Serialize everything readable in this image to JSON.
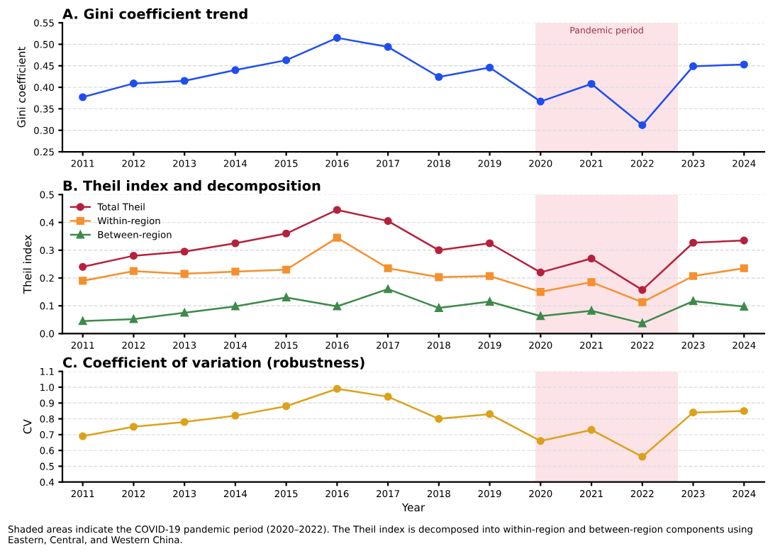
{
  "chart_data": [
    {
      "type": "line",
      "title": "A. Gini coefficient trend",
      "ylabel": "Gini coefficient",
      "x": [
        2011,
        2012,
        2013,
        2014,
        2015,
        2016,
        2017,
        2018,
        2019,
        2020,
        2021,
        2022,
        2023,
        2024
      ],
      "series": [
        {
          "color": "#1f4ef0",
          "marker": "circle",
          "values": [
            0.377,
            0.409,
            0.415,
            0.44,
            0.463,
            0.515,
            0.494,
            0.424,
            0.446,
            0.367,
            0.408,
            0.312,
            0.449,
            0.453
          ]
        }
      ],
      "xlim": [
        2010.6,
        2024.4
      ],
      "xticks": [
        2011,
        2012,
        2013,
        2014,
        2015,
        2016,
        2017,
        2018,
        2019,
        2020,
        2021,
        2022,
        2023,
        2024
      ],
      "ylim": [
        0.25,
        0.55
      ],
      "yticks": [
        {
          "value": 0.25,
          "label": "0.25"
        },
        {
          "value": 0.3,
          "label": "0.30"
        },
        {
          "value": 0.35,
          "label": "0.35"
        },
        {
          "value": 0.4,
          "label": "0.40"
        },
        {
          "value": 0.45,
          "label": "0.45"
        },
        {
          "value": 0.5,
          "label": "0.50"
        },
        {
          "value": 0.55,
          "label": "0.55"
        }
      ],
      "grid": "y",
      "legend": false,
      "bands": [
        {
          "axis": "x",
          "from": 2019.9,
          "to": 2022.7,
          "label": "Pandemic period",
          "color": "#fbe3e8"
        }
      ]
    },
    {
      "type": "line",
      "title": "B. Theil index and decomposition",
      "ylabel": "Theil index",
      "x": [
        2011,
        2012,
        2013,
        2014,
        2015,
        2016,
        2017,
        2018,
        2019,
        2020,
        2021,
        2022,
        2023,
        2024
      ],
      "series": [
        {
          "name": "Total Theil",
          "color": "#b5213c",
          "marker": "circle",
          "values": [
            0.24,
            0.28,
            0.295,
            0.325,
            0.36,
            0.445,
            0.405,
            0.3,
            0.325,
            0.22,
            0.27,
            0.157,
            0.327,
            0.335
          ]
        },
        {
          "name": "Within-region",
          "color": "#f5902e",
          "marker": "square",
          "values": [
            0.19,
            0.225,
            0.215,
            0.223,
            0.23,
            0.345,
            0.235,
            0.203,
            0.207,
            0.15,
            0.185,
            0.113,
            0.207,
            0.235
          ]
        },
        {
          "name": "Between-region",
          "color": "#3d8a4a",
          "marker": "triangle",
          "values": [
            0.045,
            0.052,
            0.075,
            0.098,
            0.13,
            0.098,
            0.16,
            0.092,
            0.115,
            0.063,
            0.082,
            0.037,
            0.117,
            0.097
          ]
        }
      ],
      "xlim": [
        2010.6,
        2024.4
      ],
      "xticks": [
        2011,
        2012,
        2013,
        2014,
        2015,
        2016,
        2017,
        2018,
        2019,
        2020,
        2021,
        2022,
        2023,
        2024
      ],
      "ylim": [
        0.0,
        0.5
      ],
      "yticks": [
        {
          "value": 0,
          "label": "0.0"
        },
        {
          "value": 0.1,
          "label": "0.1"
        },
        {
          "value": 0.2,
          "label": "0.2"
        },
        {
          "value": 0.3,
          "label": "0.3"
        },
        {
          "value": 0.4,
          "label": "0.4"
        },
        {
          "value": 0.5,
          "label": "0.5"
        }
      ],
      "grid": "y",
      "legend": "top left",
      "bands": [
        {
          "axis": "x",
          "from": 2019.9,
          "to": 2022.7,
          "color": "#fbe3e8"
        }
      ]
    },
    {
      "type": "line",
      "title": "C. Coefficient of variation (robustness)",
      "ylabel": "CV",
      "xlabel": "Year",
      "x": [
        2011,
        2012,
        2013,
        2014,
        2015,
        2016,
        2017,
        2018,
        2019,
        2020,
        2021,
        2022,
        2023,
        2024
      ],
      "series": [
        {
          "color": "#dba21a",
          "marker": "circle",
          "values": [
            0.69,
            0.75,
            0.78,
            0.82,
            0.88,
            0.99,
            0.94,
            0.8,
            0.83,
            0.66,
            0.73,
            0.56,
            0.84,
            0.85
          ]
        }
      ],
      "xlim": [
        2010.6,
        2024.4
      ],
      "xticks": [
        2011,
        2012,
        2013,
        2014,
        2015,
        2016,
        2017,
        2018,
        2019,
        2020,
        2021,
        2022,
        2023,
        2024
      ],
      "ylim": [
        0.4,
        1.1
      ],
      "yticks": [
        {
          "value": 0.4,
          "label": "0.4"
        },
        {
          "value": 0.5,
          "label": "0.5"
        },
        {
          "value": 0.6,
          "label": "0.6"
        },
        {
          "value": 0.7,
          "label": "0.7"
        },
        {
          "value": 0.8,
          "label": "0.8"
        },
        {
          "value": 0.9,
          "label": "0.9"
        },
        {
          "value": 1.0,
          "label": "1.0"
        },
        {
          "value": 1.1,
          "label": "1.1"
        }
      ],
      "grid": "y",
      "legend": false,
      "bands": [
        {
          "axis": "x",
          "from": 2019.9,
          "to": 2022.7,
          "color": "#fbe3e8"
        }
      ],
      "annotations": [
        "Shaded areas indicate the COVID-19 pandemic period (2020–2022). The Theil index is decomposed into within-region and between-region components using Eastern, Central, and Western China."
      ]
    }
  ]
}
